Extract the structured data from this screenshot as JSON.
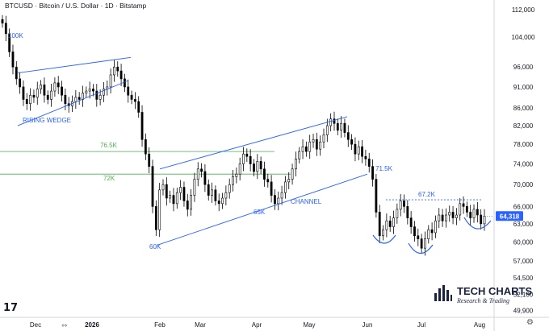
{
  "header": {
    "title": "BTCUSD · Bitcoin / U.S. Dollar · 1D · Bitstamp"
  },
  "branding": {
    "name": "TECH CHARTS",
    "tagline": "Research & Trading",
    "logo_icon": "bar-chart-icon"
  },
  "colors": {
    "candle": "#000000",
    "pattern_line": "#2962ff",
    "support_line": "#4caf50",
    "blue_text": "#2962ff",
    "green_text": "#4caf50",
    "price_badge": "#2962ff"
  },
  "chart_data": {
    "type": "candlestick",
    "title": "BTCUSD · Bitcoin / U.S. Dollar · 1D · Bitstamp",
    "x_tick_labels": [
      "Dec",
      "2026",
      "Feb",
      "Mar",
      "Apr",
      "May",
      "Jun",
      "Jul",
      "Aug"
    ],
    "y_tick_labels": [
      "49,900",
      "52,100",
      "54,500",
      "57,000",
      "60,000",
      "63,000",
      "66,000",
      "70,000",
      "74,000",
      "78,000",
      "82,000",
      "86,000",
      "91,000",
      "96,000",
      "104,000",
      "112,000"
    ],
    "y_scale": "log",
    "ylim": [
      49000,
      112000
    ],
    "last_price_label": "64,318",
    "close_series": [
      108000,
      105000,
      100000,
      96000,
      93000,
      91000,
      88000,
      87000,
      89000,
      88500,
      90500,
      91500,
      89000,
      88000,
      90000,
      92000,
      91000,
      89000,
      87000,
      86500,
      87500,
      88500,
      88000,
      89500,
      90000,
      90500,
      90000,
      88000,
      89000,
      90500,
      91000,
      94000,
      96000,
      95000,
      93000,
      91000,
      89000,
      88000,
      87500,
      85000,
      79000,
      76000,
      73500,
      66000,
      62000,
      69000,
      70000,
      67500,
      68000,
      66500,
      68500,
      69500,
      67000,
      65500,
      68000,
      71000,
      73000,
      72500,
      70000,
      68000,
      69000,
      67000,
      66500,
      67500,
      68500,
      70000,
      71500,
      72000,
      74000,
      76000,
      75500,
      74000,
      72500,
      74500,
      73000,
      71000,
      70500,
      68000,
      66500,
      67500,
      68500,
      70500,
      71000,
      73000,
      75000,
      76500,
      77500,
      76500,
      78500,
      79000,
      77000,
      78500,
      80000,
      82000,
      83500,
      82500,
      81000,
      82500,
      80500,
      79000,
      78000,
      76000,
      77500,
      75500,
      75000,
      73500,
      71000,
      65000,
      61000,
      62000,
      63500,
      62500,
      64000,
      65500,
      67000,
      66000,
      64000,
      62500,
      61000,
      60500,
      59000,
      60500,
      62000,
      61500,
      63500,
      64500,
      63500,
      64500,
      65000,
      64000,
      64500,
      66500,
      66000,
      65000,
      64000,
      65500,
      64500,
      63000,
      64318
    ],
    "patterns": [
      {
        "name": "RISING WEDGE",
        "type": "wedge"
      },
      {
        "name": "CHANNEL",
        "type": "channel"
      }
    ],
    "horizontal_levels": [
      {
        "label": "76.5K",
        "value": 76500,
        "color": "green"
      },
      {
        "label": "72K",
        "value": 72000,
        "color": "green"
      },
      {
        "label": "67.2K",
        "value": 67200,
        "color": "blue",
        "dashed": true
      }
    ],
    "annotations": [
      {
        "text": "100K",
        "value": 100000
      },
      {
        "text": "60K",
        "value": 60000
      },
      {
        "text": "65K",
        "value": 65000
      },
      {
        "text": "71.5K",
        "value": 71500
      }
    ]
  },
  "ui": {
    "gear_icon": "⚙",
    "scroll_icon": "⇔",
    "tradingview_icon": "17"
  }
}
